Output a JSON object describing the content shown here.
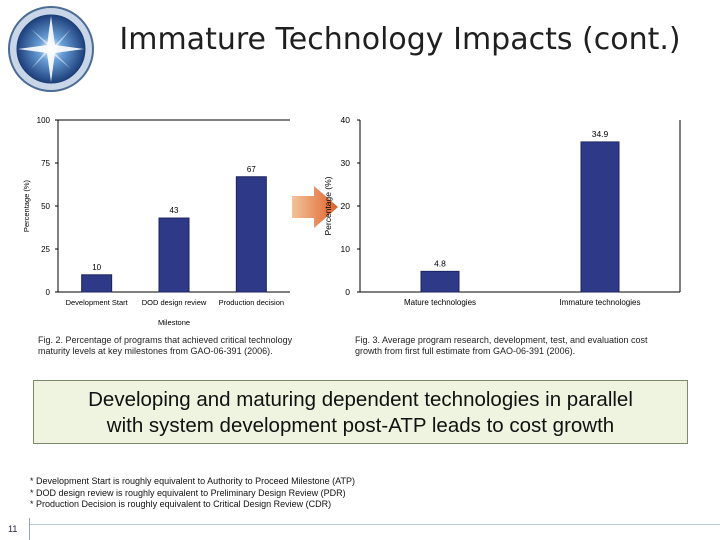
{
  "slide": {
    "title": "Immature Technology Impacts (cont.)",
    "page_number": "11"
  },
  "captions": {
    "fig2": [
      "Fig. 2. Percentage of programs that achieved critical technology",
      "maturity levels at key milestones from GAO-06-391 (2006)."
    ],
    "fig3": [
      "Fig. 3. Average program research, development, test, and evaluation cost",
      "growth from first full estimate from GAO-06-391 (2006)."
    ]
  },
  "banner": {
    "line1": "Developing and maturing dependent technologies in parallel",
    "line2": "with system development post-ATP leads to cost growth"
  },
  "footnotes": [
    "* Development Start is roughly equivalent to Authority to Proceed Milestone (ATP)",
    "* DOD design review is roughly equivalent to Preliminary Design Review (PDR)",
    "* Production Decision is roughly equivalent to Critical Design Review (CDR)"
  ],
  "colors": {
    "bar_fill": "#2e3a87",
    "bar_stroke": "#1c2260",
    "arrow_start": "#f2c39a",
    "arrow_end": "#e0602a"
  },
  "chart_data": [
    {
      "type": "bar",
      "categories": [
        "Development Start",
        "DOD design review",
        "Production decision"
      ],
      "values": [
        10,
        43,
        67
      ],
      "data_labels": [
        "10",
        "43",
        "67"
      ],
      "xlabel": "Milestone",
      "ylabel": "Percentage (%)",
      "ylim": [
        0,
        100
      ],
      "yticks": [
        "0",
        "25",
        "50",
        "75",
        "100"
      ],
      "grid": false
    },
    {
      "type": "bar",
      "categories": [
        "Mature technologies",
        "Immature technologies"
      ],
      "values": [
        4.8,
        34.9
      ],
      "data_labels": [
        "4.8",
        "34.9"
      ],
      "xlabel": "",
      "ylabel": "Percentage (%)",
      "ylim": [
        0,
        40
      ],
      "yticks": [
        "0",
        "10",
        "20",
        "30",
        "40"
      ],
      "grid": false
    }
  ]
}
